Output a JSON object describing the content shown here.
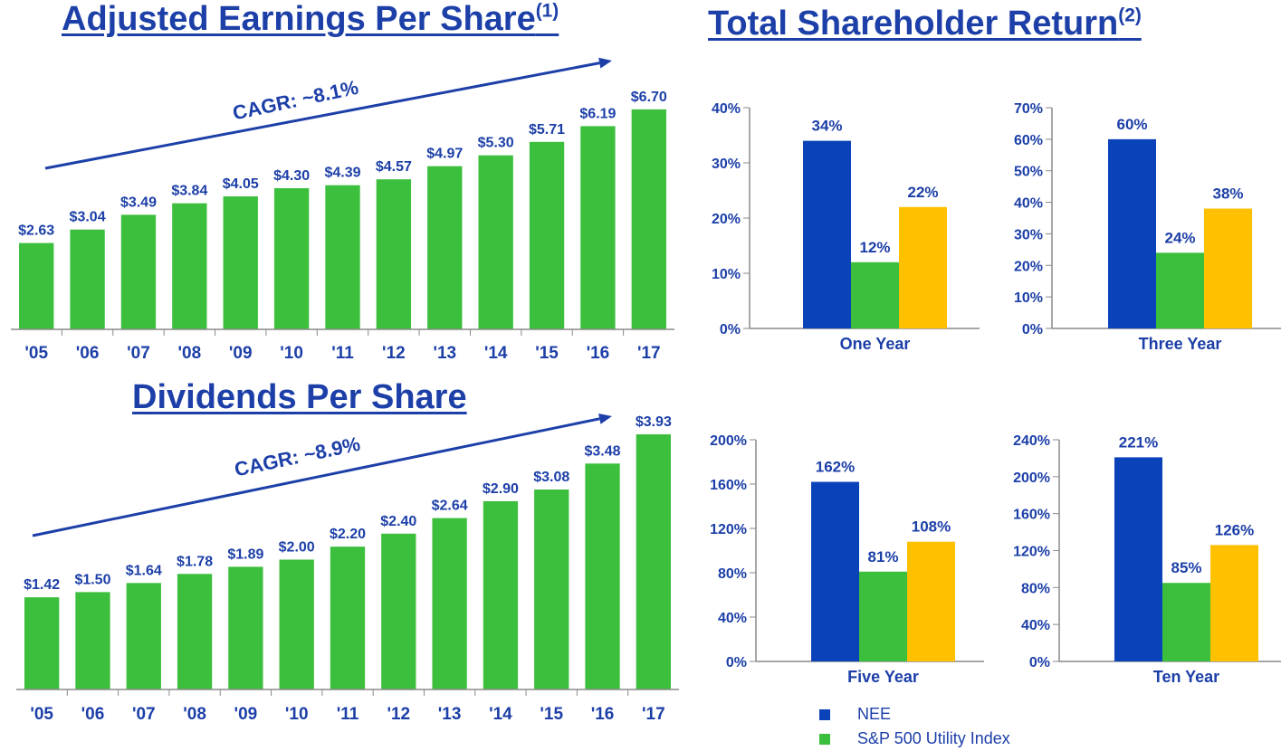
{
  "colors": {
    "nee": "#0a43b9",
    "sp500": "#3cbf3c",
    "third": "#ffc000",
    "text": "#1c3fa8",
    "axis": "#8a8a8a"
  },
  "eps": {
    "title": "Adjusted Earnings Per Share",
    "note": "(1)",
    "cagr": "CAGR: ~8.1%"
  },
  "dps": {
    "title": "Dividends Per Share",
    "cagr": "CAGR: ~8.9%"
  },
  "tsr": {
    "title": "Total Shareholder Return",
    "note": "(2)"
  },
  "legend": {
    "items": [
      {
        "label": "NEE",
        "color": "#0a43b9"
      },
      {
        "label": "S&P 500 Utility Index",
        "color": "#3cbf3c"
      }
    ]
  },
  "chart_data": [
    {
      "type": "bar",
      "title": "Adjusted Earnings Per Share",
      "categories": [
        "'05",
        "'06",
        "'07",
        "'08",
        "'09",
        "'10",
        "'11",
        "'12",
        "'13",
        "'14",
        "'15",
        "'16",
        "'17"
      ],
      "values": [
        2.63,
        3.04,
        3.49,
        3.84,
        4.05,
        4.3,
        4.39,
        4.57,
        4.97,
        5.3,
        5.71,
        6.19,
        6.7
      ],
      "labels": [
        "$2.63",
        "$3.04",
        "$3.49",
        "$3.84",
        "$4.05",
        "$4.30",
        "$4.39",
        "$4.57",
        "$4.97",
        "$5.30",
        "$5.71",
        "$6.19",
        "$6.70"
      ],
      "annotation": "CAGR: ~8.1%",
      "ylim": [
        0,
        7.0
      ],
      "grid": false
    },
    {
      "type": "bar",
      "title": "Dividends Per Share",
      "categories": [
        "'05",
        "'06",
        "'07",
        "'08",
        "'09",
        "'10",
        "'11",
        "'12",
        "'13",
        "'14",
        "'15",
        "'16",
        "'17"
      ],
      "values": [
        1.42,
        1.5,
        1.64,
        1.78,
        1.89,
        2.0,
        2.2,
        2.4,
        2.64,
        2.9,
        3.08,
        3.48,
        3.93
      ],
      "labels": [
        "$1.42",
        "$1.50",
        "$1.64",
        "$1.78",
        "$1.89",
        "$2.00",
        "$2.20",
        "$2.40",
        "$2.64",
        "$2.90",
        "$3.08",
        "$3.48",
        "$3.93"
      ],
      "annotation": "CAGR: ~8.9%",
      "ylim": [
        0,
        4.0
      ],
      "grid": false
    },
    {
      "type": "bar",
      "categories": [
        "One Year"
      ],
      "series": [
        {
          "name": "NEE",
          "values": [
            34
          ]
        },
        {
          "name": "S&P 500 Utility Index",
          "values": [
            12
          ]
        },
        {
          "values": [
            22
          ]
        }
      ],
      "labels": [
        "34%",
        "12%",
        "22%"
      ],
      "yticks": [
        "0%",
        "10%",
        "20%",
        "30%",
        "40%"
      ],
      "ylim": [
        0,
        40
      ],
      "grid": false
    },
    {
      "type": "bar",
      "categories": [
        "Three Year"
      ],
      "series": [
        {
          "name": "NEE",
          "values": [
            60
          ]
        },
        {
          "name": "S&P 500 Utility Index",
          "values": [
            24
          ]
        },
        {
          "values": [
            38
          ]
        }
      ],
      "labels": [
        "60%",
        "24%",
        "38%"
      ],
      "yticks": [
        "0%",
        "10%",
        "20%",
        "30%",
        "40%",
        "50%",
        "60%",
        "70%"
      ],
      "ylim": [
        0,
        70
      ],
      "grid": false
    },
    {
      "type": "bar",
      "categories": [
        "Five Year"
      ],
      "series": [
        {
          "name": "NEE",
          "values": [
            162
          ]
        },
        {
          "name": "S&P 500 Utility Index",
          "values": [
            81
          ]
        },
        {
          "values": [
            108
          ]
        }
      ],
      "labels": [
        "162%",
        "81%",
        "108%"
      ],
      "yticks": [
        "0%",
        "40%",
        "80%",
        "120%",
        "160%",
        "200%"
      ],
      "ylim": [
        0,
        200
      ],
      "grid": false
    },
    {
      "type": "bar",
      "categories": [
        "Ten Year"
      ],
      "series": [
        {
          "name": "NEE",
          "values": [
            221
          ]
        },
        {
          "name": "S&P 500 Utility Index",
          "values": [
            85
          ]
        },
        {
          "values": [
            126
          ]
        }
      ],
      "labels": [
        "221%",
        "85%",
        "126%"
      ],
      "yticks": [
        "0%",
        "40%",
        "80%",
        "120%",
        "160%",
        "200%",
        "240%"
      ],
      "ylim": [
        0,
        240
      ],
      "grid": false
    }
  ]
}
